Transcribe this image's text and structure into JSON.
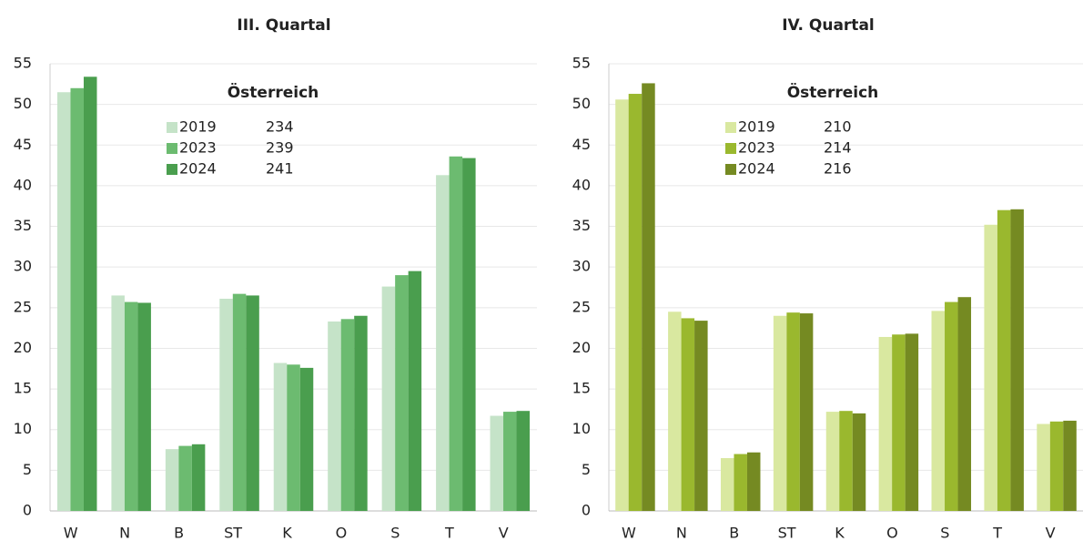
{
  "chart_data": [
    {
      "type": "bar",
      "title": "III. Quartal",
      "legend_title": "Österreich",
      "categories": [
        "W",
        "N",
        "B",
        "ST",
        "K",
        "O",
        "S",
        "T",
        "V"
      ],
      "series": [
        {
          "name": "2019",
          "total": 234,
          "color": "#c5e3c8",
          "values": [
            51.5,
            26.5,
            7.6,
            26.1,
            18.2,
            23.3,
            27.6,
            41.3,
            11.7
          ]
        },
        {
          "name": "2023",
          "total": 239,
          "color": "#6cbb70",
          "values": [
            52.0,
            25.7,
            8.0,
            26.7,
            18.0,
            23.6,
            29.0,
            43.6,
            12.2
          ]
        },
        {
          "name": "2024",
          "total": 241,
          "color": "#4a9e4e",
          "values": [
            53.4,
            25.6,
            8.2,
            26.5,
            17.6,
            24.0,
            29.5,
            43.4,
            12.3
          ]
        }
      ],
      "ylim": [
        0,
        55
      ],
      "yticks": [
        0,
        5,
        10,
        15,
        20,
        25,
        30,
        35,
        40,
        45,
        50,
        55
      ],
      "grid": true
    },
    {
      "type": "bar",
      "title": "IV. Quartal",
      "legend_title": "Österreich",
      "categories": [
        "W",
        "N",
        "B",
        "ST",
        "K",
        "O",
        "S",
        "T",
        "V"
      ],
      "series": [
        {
          "name": "2019",
          "total": 210,
          "color": "#d9e8a0",
          "values": [
            50.6,
            24.5,
            6.5,
            24.0,
            12.2,
            21.4,
            24.6,
            35.2,
            10.7
          ]
        },
        {
          "name": "2023",
          "total": 214,
          "color": "#9ab82e",
          "values": [
            51.3,
            23.7,
            7.0,
            24.4,
            12.3,
            21.7,
            25.7,
            37.0,
            11.0
          ]
        },
        {
          "name": "2024",
          "total": 216,
          "color": "#758a22",
          "values": [
            52.6,
            23.4,
            7.2,
            24.3,
            12.0,
            21.8,
            26.3,
            37.1,
            11.1
          ]
        }
      ],
      "ylim": [
        0,
        55
      ],
      "yticks": [
        0,
        5,
        10,
        15,
        20,
        25,
        30,
        35,
        40,
        45,
        50,
        55
      ],
      "grid": true
    }
  ]
}
